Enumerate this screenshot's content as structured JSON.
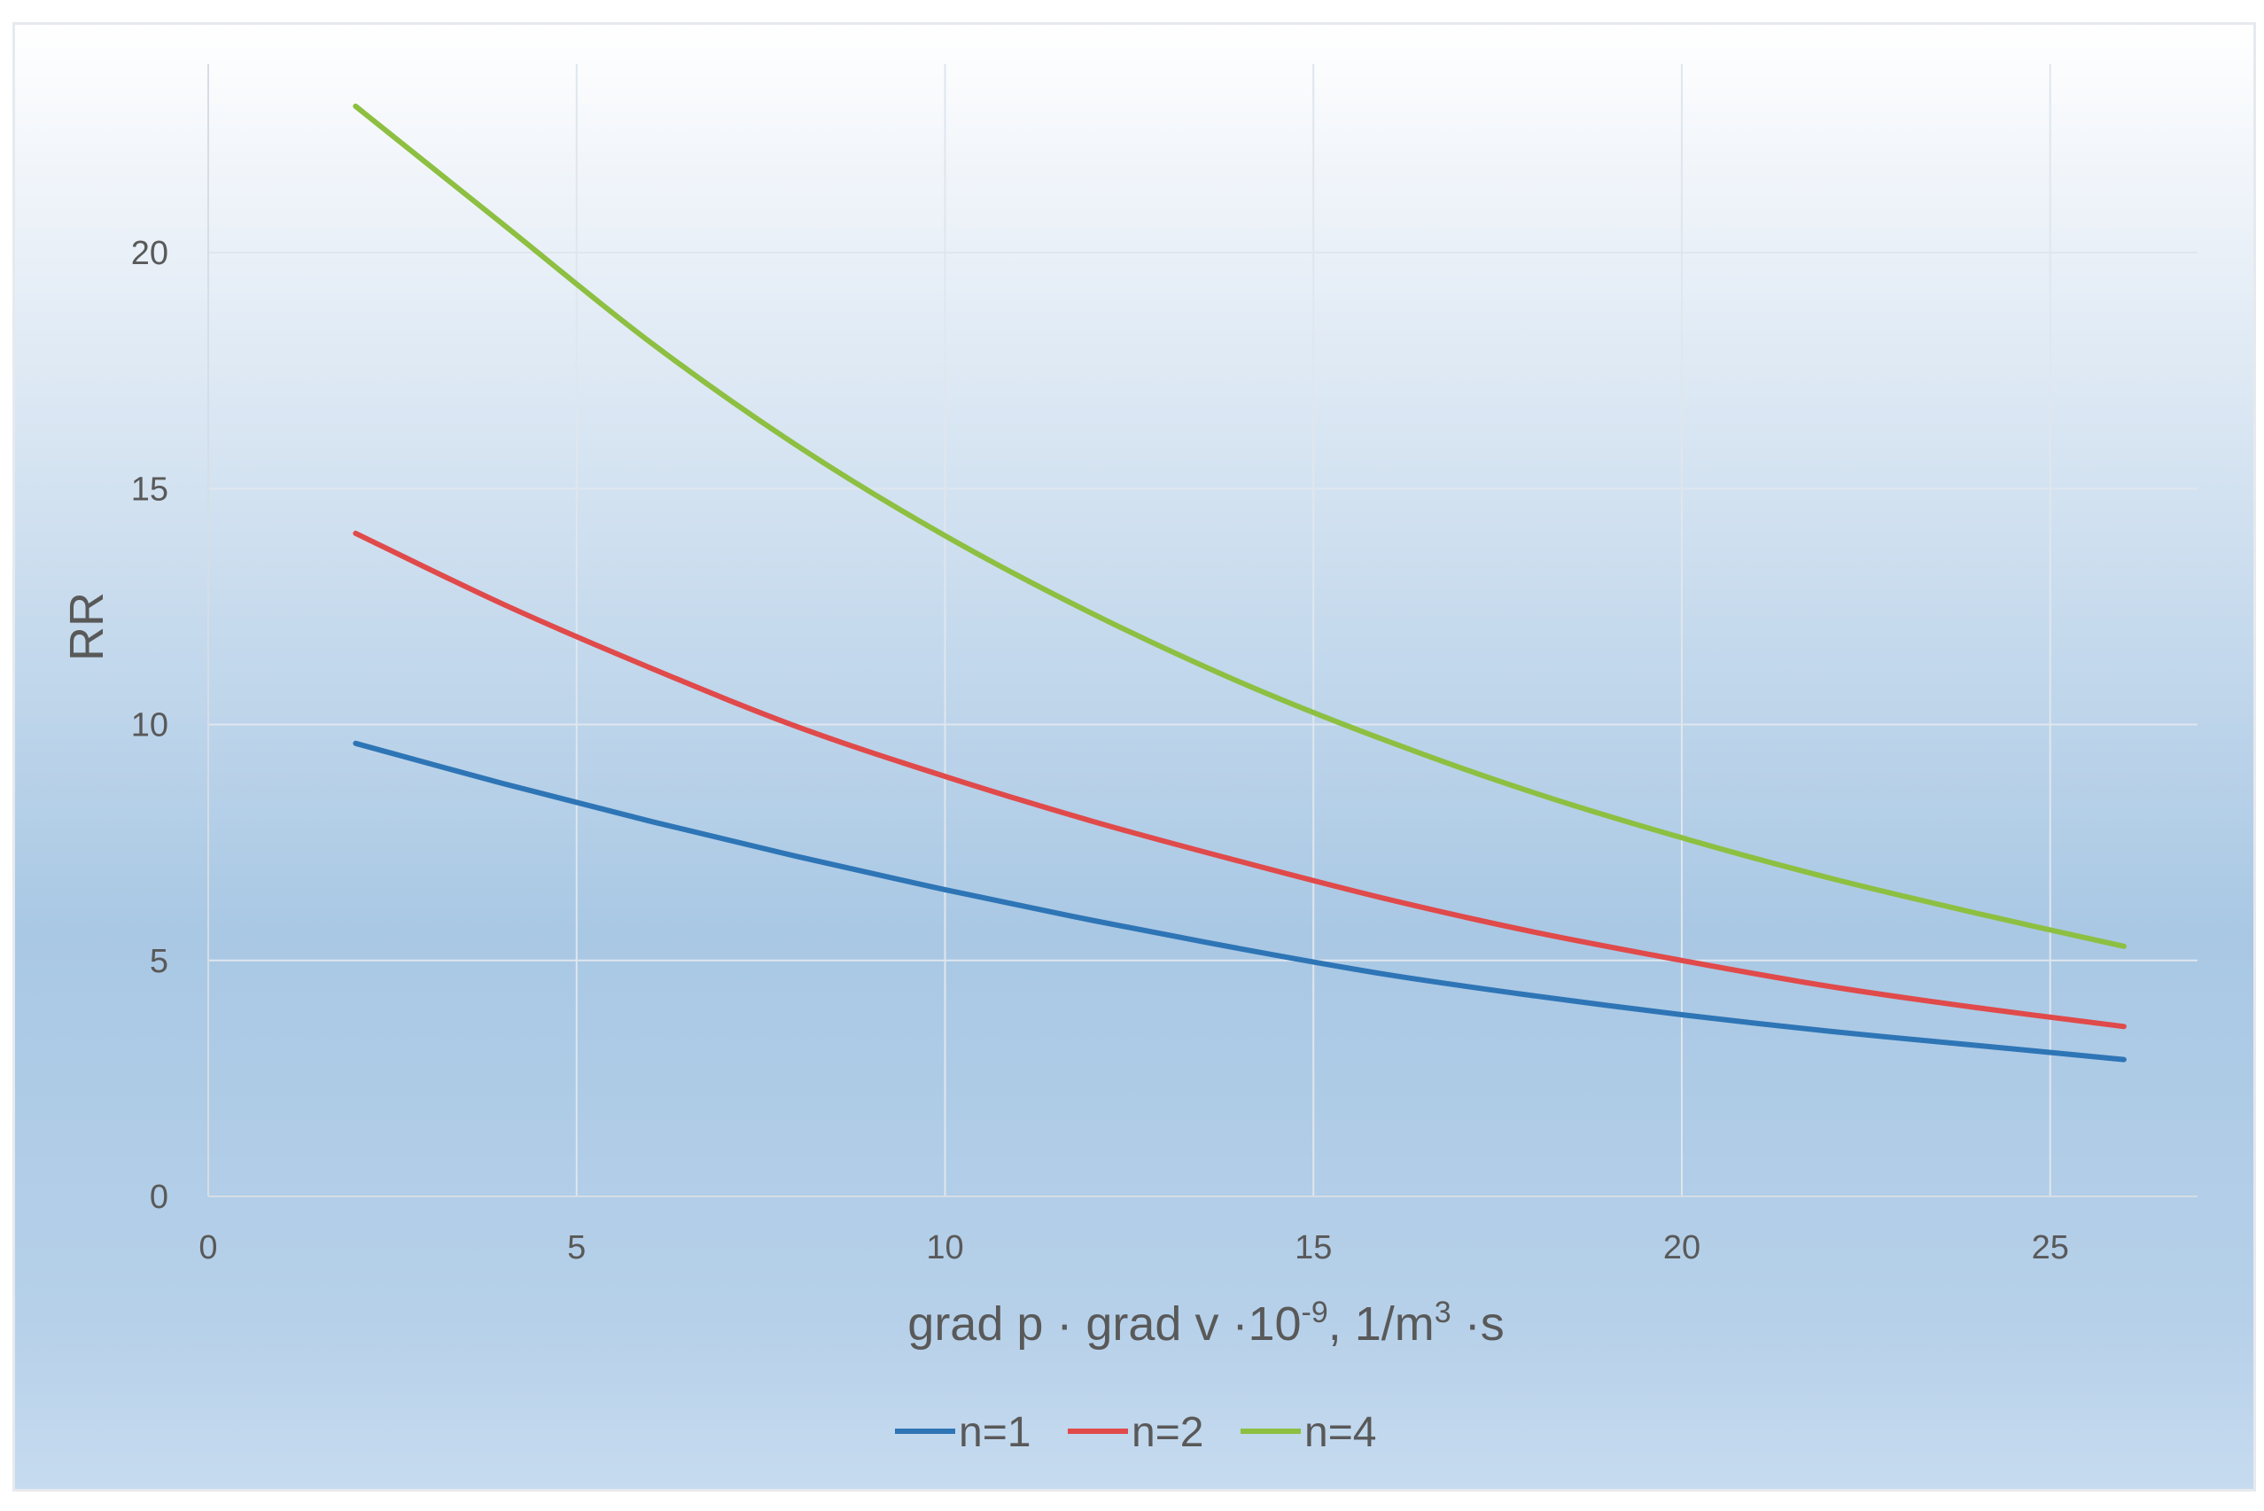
{
  "chart_data": {
    "type": "line",
    "title": "",
    "xlabel_main": "grad p · grad v ·10",
    "xlabel_exp1": "-9",
    "xlabel_mid": ", 1/m",
    "xlabel_exp2": "3",
    "xlabel_end": " ·s",
    "ylabel": "RR",
    "xlim": [
      0,
      27
    ],
    "ylim": [
      0,
      24
    ],
    "xticks": [
      0,
      5,
      10,
      15,
      20,
      25
    ],
    "yticks": [
      0,
      5,
      10,
      15,
      20
    ],
    "x": [
      2,
      4,
      6,
      8,
      10,
      12,
      14,
      16,
      18,
      20,
      22,
      24,
      26
    ],
    "series": [
      {
        "name": "n=1",
        "color": "#2e75b6",
        "values": [
          9.6,
          8.75,
          7.95,
          7.2,
          6.5,
          5.85,
          5.25,
          4.7,
          4.25,
          3.85,
          3.5,
          3.2,
          2.9
        ]
      },
      {
        "name": "n=2",
        "color": "#e04a4a",
        "values": [
          14.05,
          12.55,
          11.2,
          9.95,
          8.9,
          7.95,
          7.1,
          6.3,
          5.6,
          5.0,
          4.45,
          4.0,
          3.6
        ]
      },
      {
        "name": "n=4",
        "color": "#8dbf41",
        "values": [
          23.1,
          20.6,
          18.1,
          15.9,
          14.0,
          12.35,
          10.9,
          9.65,
          8.55,
          7.6,
          6.75,
          6.0,
          5.3
        ]
      }
    ],
    "grid": true,
    "legend_position": "bottom"
  }
}
